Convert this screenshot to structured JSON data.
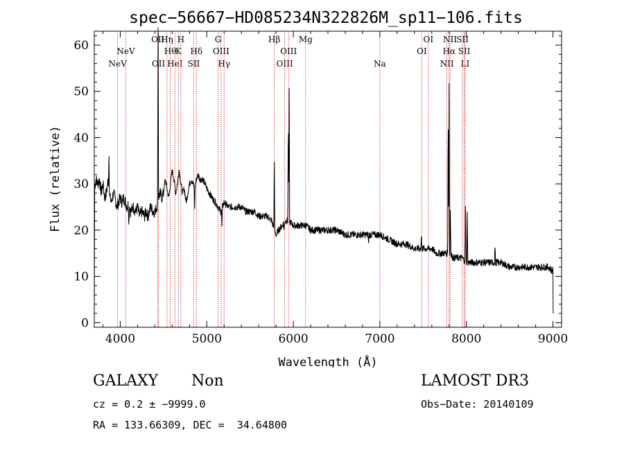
{
  "chart_data": {
    "type": "line",
    "title": "spec−56667−HD085234N322826M_sp11−106.fits",
    "xlabel": "Wavelength (Å)",
    "ylabel": "Flux (relative)",
    "xlim": [
      3700,
      9100
    ],
    "ylim": [
      -1,
      63
    ],
    "xticks": [
      4000,
      5000,
      6000,
      7000,
      8000,
      9000
    ],
    "yticks": [
      0,
      10,
      20,
      30,
      40,
      50,
      60
    ],
    "grid": false,
    "series_color": "#000000",
    "line_color": "#cc2222",
    "continuum": [
      [
        3700,
        29
      ],
      [
        3720,
        31
      ],
      [
        3740,
        30
      ],
      [
        3760,
        31
      ],
      [
        3780,
        28
      ],
      [
        3800,
        30
      ],
      [
        3820,
        27
      ],
      [
        3840,
        28
      ],
      [
        3860,
        31
      ],
      [
        3880,
        27
      ],
      [
        3900,
        26
      ],
      [
        3920,
        28
      ],
      [
        3940,
        27
      ],
      [
        3960,
        25
      ],
      [
        3980,
        26
      ],
      [
        4000,
        27
      ],
      [
        4020,
        26
      ],
      [
        4040,
        27
      ],
      [
        4060,
        26
      ],
      [
        4080,
        25
      ],
      [
        4100,
        26
      ],
      [
        4120,
        24
      ],
      [
        4150,
        25
      ],
      [
        4180,
        24
      ],
      [
        4200,
        25
      ],
      [
        4220,
        23
      ],
      [
        4250,
        24
      ],
      [
        4280,
        23
      ],
      [
        4300,
        24
      ],
      [
        4320,
        23
      ],
      [
        4350,
        25
      ],
      [
        4380,
        24
      ],
      [
        4400,
        24
      ],
      [
        4420,
        25
      ],
      [
        4440,
        27
      ],
      [
        4460,
        28
      ],
      [
        4480,
        27
      ],
      [
        4500,
        28
      ],
      [
        4520,
        31
      ],
      [
        4540,
        29
      ],
      [
        4560,
        27
      ],
      [
        4580,
        30
      ],
      [
        4600,
        33
      ],
      [
        4620,
        31
      ],
      [
        4640,
        28
      ],
      [
        4660,
        30
      ],
      [
        4680,
        33
      ],
      [
        4700,
        30
      ],
      [
        4720,
        28
      ],
      [
        4740,
        29
      ],
      [
        4760,
        26
      ],
      [
        4780,
        28
      ],
      [
        4800,
        30
      ],
      [
        4820,
        31
      ],
      [
        4840,
        30
      ],
      [
        4860,
        29
      ],
      [
        4880,
        31
      ],
      [
        4900,
        32
      ],
      [
        4920,
        31
      ],
      [
        4950,
        31
      ],
      [
        4980,
        30
      ],
      [
        5000,
        29
      ],
      [
        5030,
        28
      ],
      [
        5060,
        27
      ],
      [
        5100,
        26
      ],
      [
        5130,
        25
      ],
      [
        5160,
        24
      ],
      [
        5200,
        26
      ],
      [
        5250,
        25
      ],
      [
        5300,
        25
      ],
      [
        5350,
        25
      ],
      [
        5400,
        25
      ],
      [
        5450,
        24
      ],
      [
        5500,
        24
      ],
      [
        5550,
        24
      ],
      [
        5600,
        23
      ],
      [
        5650,
        23
      ],
      [
        5700,
        23
      ],
      [
        5750,
        22
      ],
      [
        5780,
        20
      ],
      [
        5800,
        19
      ],
      [
        5830,
        20
      ],
      [
        5870,
        21
      ],
      [
        5900,
        22
      ],
      [
        5950,
        22
      ],
      [
        6000,
        21
      ],
      [
        6050,
        21
      ],
      [
        6100,
        21
      ],
      [
        6150,
        21
      ],
      [
        6200,
        20
      ],
      [
        6300,
        20
      ],
      [
        6400,
        20
      ],
      [
        6500,
        20
      ],
      [
        6600,
        19
      ],
      [
        6700,
        19
      ],
      [
        6800,
        19
      ],
      [
        6900,
        19
      ],
      [
        7000,
        19
      ],
      [
        7100,
        18
      ],
      [
        7200,
        17
      ],
      [
        7300,
        17
      ],
      [
        7400,
        16
      ],
      [
        7500,
        16
      ],
      [
        7600,
        16
      ],
      [
        7650,
        15
      ],
      [
        7700,
        15
      ],
      [
        7750,
        15
      ],
      [
        7800,
        15
      ],
      [
        7850,
        14
      ],
      [
        7900,
        14
      ],
      [
        7950,
        14
      ],
      [
        8000,
        13
      ],
      [
        8100,
        13
      ],
      [
        8200,
        13
      ],
      [
        8300,
        13
      ],
      [
        8400,
        13
      ],
      [
        8500,
        12
      ],
      [
        8600,
        12
      ],
      [
        8700,
        12
      ],
      [
        8800,
        12
      ],
      [
        8900,
        12
      ],
      [
        8950,
        12
      ],
      [
        9000,
        11
      ]
    ],
    "features": [
      {
        "x": 3870,
        "height": 8
      },
      {
        "x": 4100,
        "height": -5
      },
      {
        "x": 4437,
        "height": 37
      },
      {
        "x": 4860,
        "height": -4
      },
      {
        "x": 5175,
        "height": -4
      },
      {
        "x": 5780,
        "height": 17
      },
      {
        "x": 5893,
        "height": -2
      },
      {
        "x": 5942,
        "height": 23
      },
      {
        "x": 5952,
        "height": 28
      },
      {
        "x": 6870,
        "height": -2
      },
      {
        "x": 7480,
        "height": 3
      },
      {
        "x": 7790,
        "height": 32
      },
      {
        "x": 7800,
        "height": 37
      },
      {
        "x": 7815,
        "height": 10
      },
      {
        "x": 7990,
        "height": 14
      },
      {
        "x": 8010,
        "height": 11
      },
      {
        "x": 8330,
        "height": 4
      },
      {
        "x": 9000,
        "height": -10
      }
    ],
    "lines": [
      {
        "name": "NeV",
        "x": 3970,
        "row": 3
      },
      {
        "name": "NeV",
        "x": 4065,
        "row": 2
      },
      {
        "name": "OII",
        "x": 4435,
        "row": 1
      },
      {
        "name": "OII",
        "x": 4442,
        "row": 3
      },
      {
        "name": "Hη",
        "x": 4540,
        "row": 1
      },
      {
        "name": "Hθ",
        "x": 4578,
        "row": 2
      },
      {
        "name": "HeI",
        "x": 4632,
        "row": 3
      },
      {
        "name": "H",
        "x": 4700,
        "row": 1
      },
      {
        "name": "K",
        "x": 4672,
        "row": 2
      },
      {
        "name": "SII",
        "x": 4850,
        "row": 3
      },
      {
        "name": "Hδ",
        "x": 4880,
        "row": 2
      },
      {
        "name": "G",
        "x": 5130,
        "row": 1
      },
      {
        "name": "OIII",
        "x": 5165,
        "row": 2
      },
      {
        "name": "Hγ",
        "x": 5200,
        "row": 3
      },
      {
        "name": "Hβ",
        "x": 5780,
        "row": 1
      },
      {
        "name": "OIII",
        "x": 5900,
        "row": 3
      },
      {
        "name": "OIII",
        "x": 5945,
        "row": 2
      },
      {
        "name": "Mg",
        "x": 6142,
        "row": 1
      },
      {
        "name": "Na",
        "x": 7000,
        "row": 3
      },
      {
        "name": "OI",
        "x": 7485,
        "row": 2
      },
      {
        "name": "OI",
        "x": 7560,
        "row": 1
      },
      {
        "name": "NII",
        "x": 7775,
        "row": 3
      },
      {
        "name": "NII",
        "x": 7810,
        "row": 1
      },
      {
        "name": "Hα",
        "x": 7800,
        "row": 2
      },
      {
        "name": "SII",
        "x": 7955,
        "row": 1
      },
      {
        "name": "SII",
        "x": 7975,
        "row": 2
      },
      {
        "name": "LI",
        "x": 7985,
        "row": 3
      }
    ]
  },
  "info": {
    "class": "GALAXY",
    "subclass": "Non",
    "survey": "LAMOST DR3",
    "cz": "cz = 0.2 ± −9999.0",
    "obs_date": "Obs−Date: 20140109",
    "coords": "RA = 133.66309, DEC =  34.64800"
  }
}
